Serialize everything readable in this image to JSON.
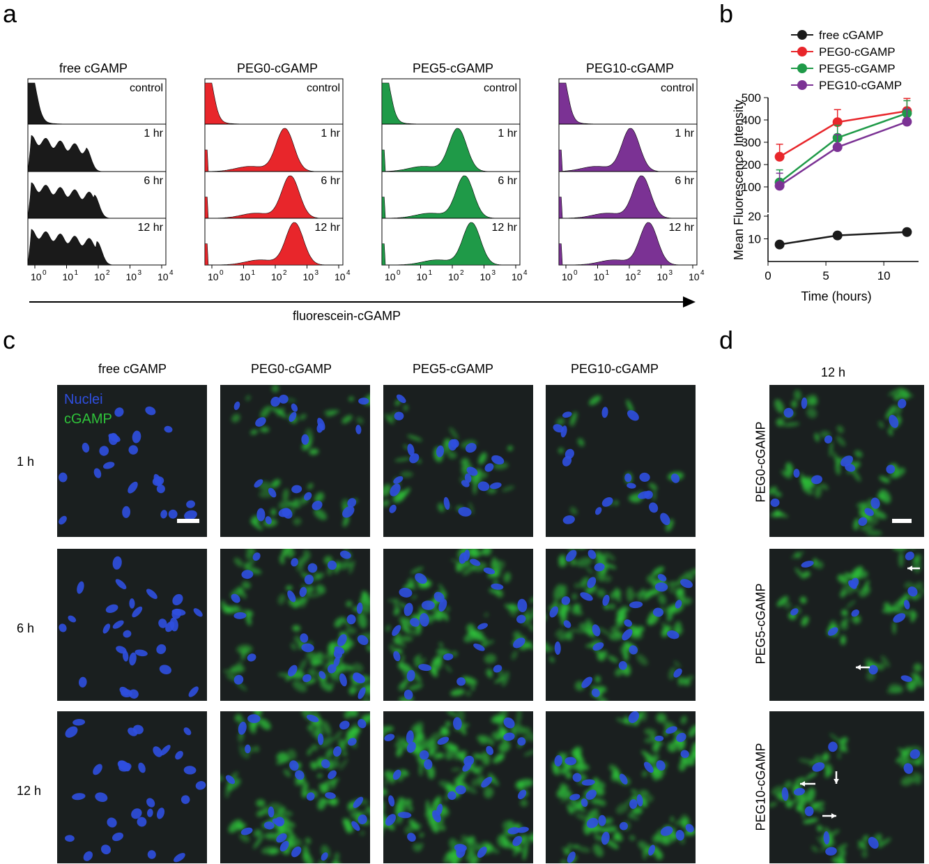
{
  "panel_labels": {
    "a": "a",
    "b": "b",
    "c": "c",
    "d": "d"
  },
  "panel_a": {
    "groups": [
      {
        "name": "free cGAMP",
        "color": "#1a1a1a"
      },
      {
        "name": "PEG0-cGAMP",
        "color": "#e8262b"
      },
      {
        "name": "PEG5-cGAMP",
        "color": "#1f9a48"
      },
      {
        "name": "PEG10-cGAMP",
        "color": "#7b3294"
      }
    ],
    "rows": [
      "control",
      "1 hr",
      "6 hr",
      "12 hr"
    ],
    "x_ticks": [
      "10",
      "0",
      "10",
      "1",
      "10",
      "2",
      "10",
      "3",
      "10",
      "4"
    ],
    "x_tick_base": "10",
    "x_tick_exps": [
      "0",
      "1",
      "2",
      "3",
      "4"
    ],
    "axis_label": "fluorescein-cGAMP"
  },
  "chart_data": {
    "type": "line",
    "xlabel": "Time (hours)",
    "ylabel": "Mean Fluorescence Intensity",
    "x_ticks": [
      "0",
      "5",
      "10"
    ],
    "y_ticks_upper": [
      "100",
      "200",
      "300",
      "400",
      "500"
    ],
    "y_ticks_lower": [
      "10",
      "20"
    ],
    "ylim_upper": [
      0,
      500
    ],
    "ylim_lower": [
      0,
      20
    ],
    "xlim": [
      0,
      13
    ],
    "legend_position": "top",
    "series": [
      {
        "name": "free cGAMP",
        "color": "#1a1a1a",
        "x": [
          1,
          6,
          12
        ],
        "y": [
          7.5,
          11.5,
          13
        ]
      },
      {
        "name": "PEG0-cGAMP",
        "color": "#e8262b",
        "x": [
          1,
          6,
          12
        ],
        "y": [
          235,
          390,
          440
        ]
      },
      {
        "name": "PEG5-cGAMP",
        "color": "#1f9a48",
        "x": [
          1,
          6,
          12
        ],
        "y": [
          120,
          320,
          430
        ]
      },
      {
        "name": "PEG10-cGAMP",
        "color": "#7b3294",
        "x": [
          1,
          6,
          12
        ],
        "y": [
          105,
          278,
          392
        ]
      }
    ]
  },
  "panel_c": {
    "columns": [
      "free cGAMP",
      "PEG0-cGAMP",
      "PEG5-cGAMP",
      "PEG10-cGAMP"
    ],
    "rows": [
      "1 h",
      "6 h",
      "12 h"
    ],
    "legend_nuclei": "Nuclei",
    "legend_cgamp": "cGAMP",
    "nuclei_color": "#2f4fe0",
    "cgamp_color": "#2fc43a"
  },
  "panel_d": {
    "time": "12 h",
    "rows": [
      "PEG0-cGAMP",
      "PEG5-cGAMP",
      "PEG10-cGAMP"
    ]
  }
}
